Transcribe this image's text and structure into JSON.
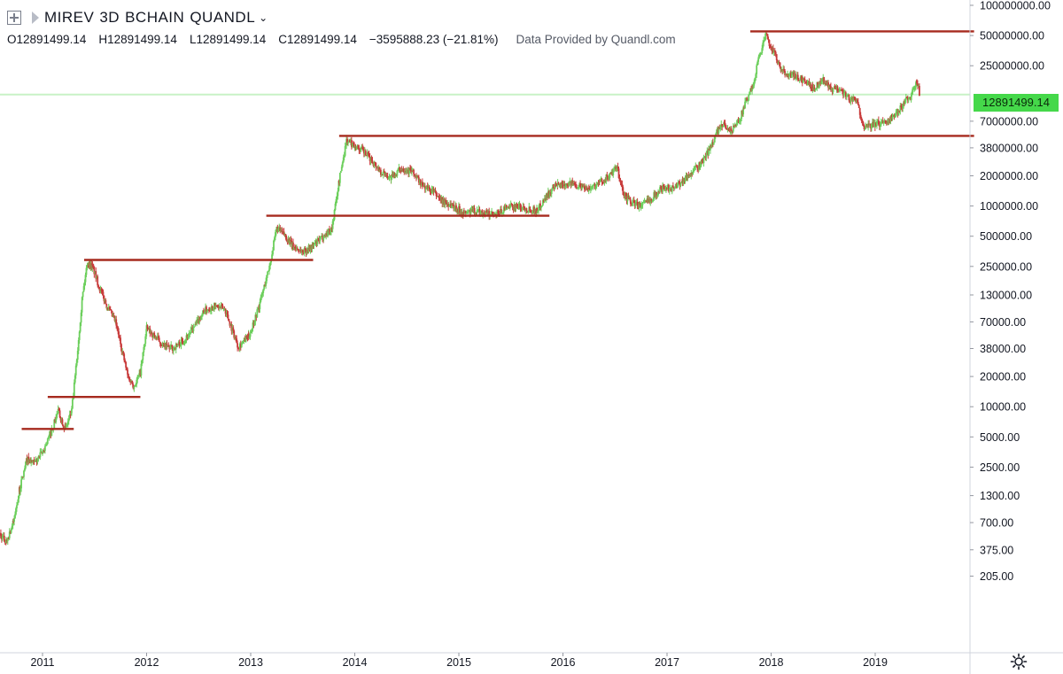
{
  "header": {
    "symbol": "MIREV",
    "interval": "3D",
    "source_a": "BCHAIN",
    "source_b": "QUANDL",
    "open": "O12891499.14",
    "high": "H12891499.14",
    "low": "L12891499.14",
    "close": "C12891499.14",
    "change": "−3595888.23 (−21.81%)",
    "provider": "Data Provided by Quandl.com"
  },
  "last_price_label": "12891499.14",
  "colors": {
    "up": "#6ccf5c",
    "down": "#c83a3a",
    "hline": "#a62a1e",
    "last_price_line": "#c8f2c6",
    "price_tag": "#45d84a",
    "axis_text": "#131722",
    "axis_line": "#d1d4dc"
  },
  "chart_data": {
    "type": "candlestick",
    "title": "",
    "xlabel": "",
    "ylabel": "",
    "yscale": "log",
    "ylim": [
      150,
      150000000
    ],
    "xlim": [
      2010.55,
      2020.0
    ],
    "grid": false,
    "x_ticks": [
      {
        "value": 2011,
        "label": "2011"
      },
      {
        "value": 2012,
        "label": "2012"
      },
      {
        "value": 2013,
        "label": "2013"
      },
      {
        "value": 2014,
        "label": "2014"
      },
      {
        "value": 2015,
        "label": "2015"
      },
      {
        "value": 2016,
        "label": "2016"
      },
      {
        "value": 2017,
        "label": "2017"
      },
      {
        "value": 2018,
        "label": "2018"
      },
      {
        "value": 2019,
        "label": "2019"
      }
    ],
    "y_ticks": [
      {
        "value": 100000000,
        "label": "100000000.00"
      },
      {
        "value": 50000000,
        "label": "50000000.00"
      },
      {
        "value": 25000000,
        "label": "25000000.00"
      },
      {
        "value": 7000000,
        "label": "7000000.00"
      },
      {
        "value": 3800000,
        "label": "3800000.00"
      },
      {
        "value": 2000000,
        "label": "2000000.00"
      },
      {
        "value": 1000000,
        "label": "1000000.00"
      },
      {
        "value": 500000,
        "label": "500000.00"
      },
      {
        "value": 250000,
        "label": "250000.00"
      },
      {
        "value": 130000,
        "label": "130000.00"
      },
      {
        "value": 70000,
        "label": "70000.00"
      },
      {
        "value": 38000,
        "label": "38000.00"
      },
      {
        "value": 20000,
        "label": "20000.00"
      },
      {
        "value": 10000,
        "label": "10000.00"
      },
      {
        "value": 5000,
        "label": "5000.00"
      },
      {
        "value": 2500,
        "label": "2500.00"
      },
      {
        "value": 1300,
        "label": "1300.00"
      },
      {
        "value": 700,
        "label": "700.00"
      },
      {
        "value": 375,
        "label": "375.00"
      },
      {
        "value": 205,
        "label": "205.00"
      }
    ],
    "last_price": 12891499.14,
    "horizontal_lines": [
      {
        "value": 6000,
        "x_start": 2010.8,
        "x_end": 2011.3
      },
      {
        "value": 12500,
        "x_start": 2011.05,
        "x_end": 2011.94
      },
      {
        "value": 290000,
        "x_start": 2011.4,
        "x_end": 2013.6
      },
      {
        "value": 800000,
        "x_start": 2013.15,
        "x_end": 2015.87
      },
      {
        "value": 5000000,
        "x_start": 2013.85,
        "x_end": 2019.95
      },
      {
        "value": 55000000,
        "x_start": 2017.8,
        "x_end": 2019.95
      }
    ],
    "series": [
      {
        "values": [
          [
            2010.55,
            600
          ],
          [
            2010.65,
            450
          ],
          [
            2010.72,
            700
          ],
          [
            2010.78,
            1500
          ],
          [
            2010.85,
            3000
          ],
          [
            2010.92,
            2700
          ],
          [
            2011.0,
            3500
          ],
          [
            2011.08,
            5500
          ],
          [
            2011.15,
            9000
          ],
          [
            2011.22,
            6000
          ],
          [
            2011.28,
            9000
          ],
          [
            2011.33,
            30000
          ],
          [
            2011.38,
            120000
          ],
          [
            2011.43,
            270000
          ],
          [
            2011.48,
            250000
          ],
          [
            2011.55,
            150000
          ],
          [
            2011.62,
            100000
          ],
          [
            2011.7,
            70000
          ],
          [
            2011.76,
            38000
          ],
          [
            2011.82,
            20000
          ],
          [
            2011.88,
            16000
          ],
          [
            2011.94,
            22000
          ],
          [
            2012.0,
            60000
          ],
          [
            2012.08,
            50000
          ],
          [
            2012.17,
            40000
          ],
          [
            2012.25,
            38000
          ],
          [
            2012.35,
            45000
          ],
          [
            2012.45,
            60000
          ],
          [
            2012.55,
            90000
          ],
          [
            2012.65,
            100000
          ],
          [
            2012.75,
            95000
          ],
          [
            2012.88,
            40000
          ],
          [
            2012.98,
            50000
          ],
          [
            2013.08,
            100000
          ],
          [
            2013.18,
            250000
          ],
          [
            2013.25,
            600000
          ],
          [
            2013.32,
            520000
          ],
          [
            2013.4,
            400000
          ],
          [
            2013.5,
            350000
          ],
          [
            2013.6,
            400000
          ],
          [
            2013.7,
            500000
          ],
          [
            2013.78,
            600000
          ],
          [
            2013.85,
            1800000
          ],
          [
            2013.92,
            4500000
          ],
          [
            2014.0,
            4000000
          ],
          [
            2014.08,
            3500000
          ],
          [
            2014.17,
            2800000
          ],
          [
            2014.25,
            2200000
          ],
          [
            2014.35,
            1900000
          ],
          [
            2014.45,
            2400000
          ],
          [
            2014.55,
            2200000
          ],
          [
            2014.65,
            1600000
          ],
          [
            2014.75,
            1400000
          ],
          [
            2014.85,
            1100000
          ],
          [
            2014.95,
            1000000
          ],
          [
            2015.05,
            850000
          ],
          [
            2015.15,
            900000
          ],
          [
            2015.25,
            850000
          ],
          [
            2015.35,
            800000
          ],
          [
            2015.45,
            950000
          ],
          [
            2015.55,
            1000000
          ],
          [
            2015.65,
            950000
          ],
          [
            2015.75,
            900000
          ],
          [
            2015.85,
            1300000
          ],
          [
            2015.95,
            1600000
          ],
          [
            2016.05,
            1700000
          ],
          [
            2016.15,
            1600000
          ],
          [
            2016.25,
            1500000
          ],
          [
            2016.35,
            1700000
          ],
          [
            2016.45,
            2000000
          ],
          [
            2016.52,
            2400000
          ],
          [
            2016.58,
            1300000
          ],
          [
            2016.65,
            1100000
          ],
          [
            2016.75,
            1000000
          ],
          [
            2016.85,
            1200000
          ],
          [
            2016.95,
            1500000
          ],
          [
            2017.05,
            1500000
          ],
          [
            2017.15,
            1800000
          ],
          [
            2017.25,
            2200000
          ],
          [
            2017.32,
            2600000
          ],
          [
            2017.4,
            3500000
          ],
          [
            2017.48,
            5500000
          ],
          [
            2017.55,
            6500000
          ],
          [
            2017.62,
            5500000
          ],
          [
            2017.7,
            7500000
          ],
          [
            2017.76,
            11000000
          ],
          [
            2017.82,
            15000000
          ],
          [
            2017.88,
            30000000
          ],
          [
            2017.95,
            50000000
          ],
          [
            2018.02,
            35000000
          ],
          [
            2018.1,
            22000000
          ],
          [
            2018.2,
            20000000
          ],
          [
            2018.3,
            18000000
          ],
          [
            2018.4,
            15000000
          ],
          [
            2018.5,
            18000000
          ],
          [
            2018.58,
            14000000
          ],
          [
            2018.66,
            15000000
          ],
          [
            2018.74,
            12000000
          ],
          [
            2018.82,
            11000000
          ],
          [
            2018.9,
            6000000
          ],
          [
            2019.0,
            6500000
          ],
          [
            2019.1,
            7000000
          ],
          [
            2019.2,
            8000000
          ],
          [
            2019.28,
            11000000
          ],
          [
            2019.35,
            13000000
          ],
          [
            2019.4,
            17000000
          ],
          [
            2019.43,
            12891499.14
          ]
        ]
      }
    ]
  }
}
